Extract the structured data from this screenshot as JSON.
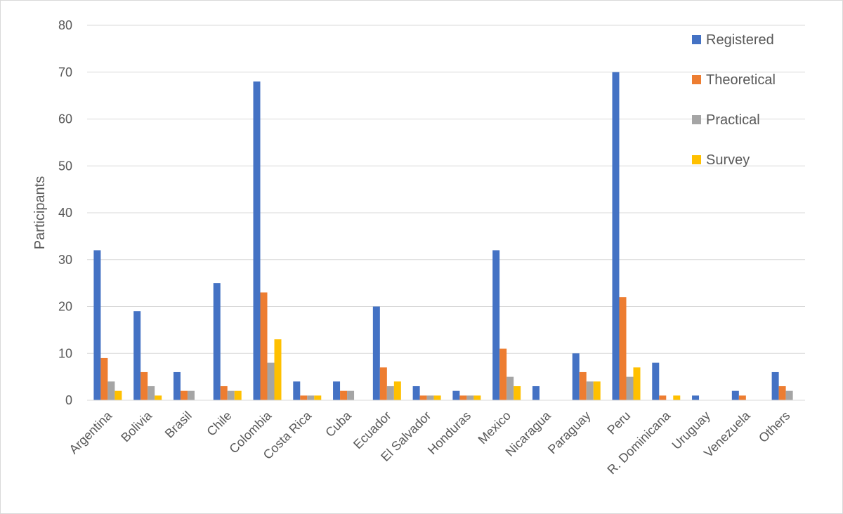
{
  "chart_data": {
    "type": "bar",
    "title": "",
    "xlabel": "",
    "ylabel": "Participants",
    "ylim": [
      0,
      80
    ],
    "yticks": [
      0,
      10,
      20,
      30,
      40,
      50,
      60,
      70,
      80
    ],
    "grid": true,
    "legend_position": "top-right",
    "categories": [
      "Argentina",
      "Bolivia",
      "Brasil",
      "Chile",
      "Colombia",
      "Costa Rica",
      "Cuba",
      "Ecuador",
      "El Salvador",
      "Honduras",
      "Mexico",
      "Nicaragua",
      "Paraguay",
      "Peru",
      "R. Dominicana",
      "Uruguay",
      "Venezuela",
      "Others"
    ],
    "series": [
      {
        "name": "Registered",
        "color": "#4472c4",
        "values": [
          32,
          19,
          6,
          25,
          68,
          4,
          4,
          20,
          3,
          2,
          32,
          3,
          10,
          70,
          8,
          1,
          2,
          6
        ]
      },
      {
        "name": "Theoretical",
        "color": "#ed7d31",
        "values": [
          9,
          6,
          2,
          3,
          23,
          1,
          2,
          7,
          1,
          1,
          11,
          0,
          6,
          22,
          1,
          0,
          1,
          3
        ]
      },
      {
        "name": "Practical",
        "color": "#a5a5a5",
        "values": [
          4,
          3,
          2,
          2,
          8,
          1,
          2,
          3,
          1,
          1,
          5,
          0,
          4,
          5,
          0,
          0,
          0,
          2
        ]
      },
      {
        "name": "Survey",
        "color": "#ffc000",
        "values": [
          2,
          1,
          0,
          2,
          13,
          1,
          0,
          4,
          1,
          1,
          3,
          0,
          4,
          7,
          1,
          0,
          0,
          0
        ]
      }
    ]
  }
}
